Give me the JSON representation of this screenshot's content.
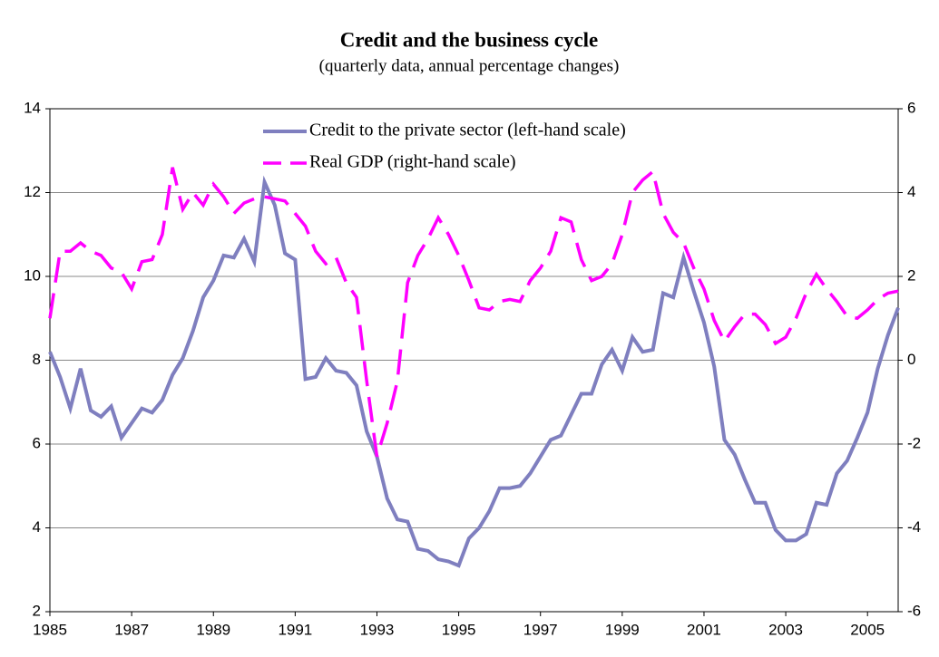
{
  "chart_data": {
    "type": "line",
    "title": "Credit and the business cycle",
    "subtitle": "(quarterly data, annual percentage changes)",
    "x": [
      1985,
      1985.25,
      1985.5,
      1985.75,
      1986,
      1986.25,
      1986.5,
      1986.75,
      1987,
      1987.25,
      1987.5,
      1987.75,
      1988,
      1988.25,
      1988.5,
      1988.75,
      1989,
      1989.25,
      1989.5,
      1989.75,
      1990,
      1990.25,
      1990.5,
      1990.75,
      1991,
      1991.25,
      1991.5,
      1991.75,
      1992,
      1992.25,
      1992.5,
      1992.75,
      1993,
      1993.25,
      1993.5,
      1993.75,
      1994,
      1994.25,
      1994.5,
      1994.75,
      1995,
      1995.25,
      1995.5,
      1995.75,
      1996,
      1996.25,
      1996.5,
      1996.75,
      1997,
      1997.25,
      1997.5,
      1997.75,
      1998,
      1998.25,
      1998.5,
      1998.75,
      1999,
      1999.25,
      1999.5,
      1999.75,
      2000,
      2000.25,
      2000.5,
      2000.75,
      2001,
      2001.25,
      2001.5,
      2001.75,
      2002,
      2002.25,
      2002.5,
      2002.75,
      2003,
      2003.25,
      2003.5,
      2003.75,
      2004,
      2004.25,
      2004.5,
      2004.75,
      2005,
      2005.25,
      2005.5,
      2005.75
    ],
    "series": [
      {
        "name": "Credit to the private sector (left-hand scale)",
        "color": "#7f7fbf",
        "dash": false,
        "values": [
          8.2,
          7.6,
          6.85,
          7.8,
          6.8,
          6.65,
          6.9,
          6.15,
          6.5,
          6.85,
          6.75,
          7.05,
          7.65,
          8.05,
          8.7,
          9.5,
          9.9,
          10.5,
          10.45,
          10.9,
          10.35,
          12.25,
          11.7,
          10.55,
          10.4,
          7.55,
          7.6,
          8.05,
          7.75,
          7.7,
          7.4,
          6.3,
          5.7,
          4.7,
          4.2,
          4.15,
          3.5,
          3.45,
          3.25,
          3.2,
          3.1,
          3.75,
          4.0,
          4.4,
          4.95,
          4.95,
          5.0,
          5.3,
          5.7,
          6.1,
          6.2,
          6.7,
          7.2,
          7.2,
          7.9,
          8.25,
          7.75,
          8.55,
          8.2,
          8.25,
          9.6,
          9.5,
          10.45,
          9.65,
          8.9,
          7.85,
          6.1,
          5.75,
          5.15,
          4.6,
          4.6,
          3.95,
          3.7,
          3.7,
          3.85,
          4.6,
          4.55,
          5.3,
          5.6,
          6.15,
          6.75,
          7.8,
          8.6,
          9.25
        ]
      },
      {
        "name": "Real GDP (right-hand scale)",
        "color": "#ff00ff",
        "dash": true,
        "axis": "y2",
        "values": [
          1.0,
          2.6,
          2.6,
          2.8,
          2.6,
          2.5,
          2.2,
          2.1,
          1.7,
          2.35,
          2.4,
          3.0,
          4.6,
          3.6,
          4.0,
          3.7,
          4.2,
          3.9,
          3.5,
          3.75,
          3.85,
          3.9,
          3.85,
          3.8,
          3.5,
          3.2,
          2.6,
          2.3,
          2.45,
          1.85,
          1.5,
          -0.5,
          -2.3,
          -1.5,
          -0.5,
          1.85,
          2.5,
          2.9,
          3.4,
          3.0,
          2.5,
          1.9,
          1.25,
          1.2,
          1.4,
          1.45,
          1.4,
          1.9,
          2.2,
          2.6,
          3.4,
          3.3,
          2.4,
          1.9,
          2.0,
          2.3,
          3.0,
          4.0,
          4.3,
          4.5,
          3.5,
          3.05,
          2.8,
          2.2,
          1.7,
          0.95,
          0.45,
          0.8,
          1.1,
          1.1,
          0.85,
          0.4,
          0.55,
          1.0,
          1.6,
          2.05,
          1.7,
          1.4,
          1.05,
          1.0,
          1.2,
          1.45,
          1.6,
          1.65
        ]
      }
    ],
    "xlim": [
      1985,
      2005.75
    ],
    "xticks": [
      1985,
      1987,
      1989,
      1991,
      1993,
      1995,
      1997,
      1999,
      2001,
      2003,
      2005
    ],
    "ylim": [
      2,
      14
    ],
    "yticks": [
      2,
      4,
      6,
      8,
      10,
      12,
      14
    ],
    "y2lim": [
      -6,
      6
    ],
    "y2ticks": [
      -6,
      -4,
      -2,
      0,
      2,
      4,
      6
    ],
    "grid": true,
    "legend": "top"
  }
}
